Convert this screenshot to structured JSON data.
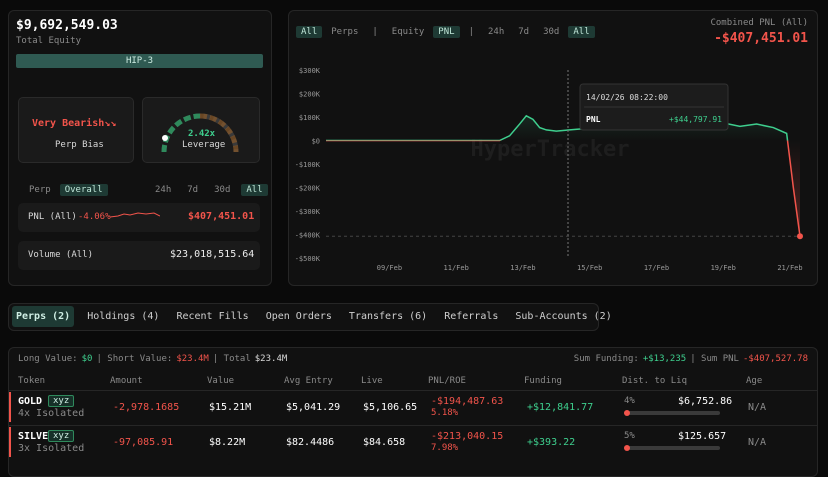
{
  "summary": {
    "equity": "$9,692,549.03",
    "equity_label": "Total Equity",
    "badge": "HIP-3",
    "bias": "Very Bearish↘↘",
    "bias_label": "Perp Bias",
    "leverage": "2.42x",
    "leverage_label": "Leverage",
    "filters": [
      "Perp",
      "Overall"
    ],
    "ranges": [
      "24h",
      "7d",
      "30d",
      "All"
    ],
    "pnl_label": "PNL (All)",
    "pnl_pct": "-4.06%",
    "pnl_value": "$407,451.01",
    "volume_label": "Volume (All)",
    "volume_value": "$23,018,515.64"
  },
  "chart_panel": {
    "tabs": [
      "All",
      "Perps",
      "|",
      "Equity",
      "PNL",
      "|",
      "24h",
      "7d",
      "30d",
      "All"
    ],
    "combined_label": "Combined PNL (All)",
    "combined_value": "-$407,451.01"
  },
  "chart_data": {
    "type": "line",
    "watermark": "HyperTracker",
    "x": [
      7.1,
      12.3,
      12.6,
      12.9,
      13.1,
      13.3,
      13.5,
      13.7,
      14.0,
      14.4,
      14.8,
      15.3,
      15.8,
      16.3,
      16.6,
      17.0,
      17.5,
      18.0,
      18.5,
      19.0,
      19.5,
      20.0,
      20.5,
      20.9,
      21.1,
      21.3
    ],
    "series": [
      {
        "name": "PNL",
        "color": "#3ecf8e",
        "negative_color": "#f2544b",
        "values": [
          0,
          0,
          20000,
          70000,
          105000,
          90000,
          55000,
          45000,
          40000,
          45000,
          50000,
          55000,
          60000,
          75000,
          70000,
          80000,
          60000,
          70000,
          65000,
          75000,
          60000,
          70000,
          55000,
          30000,
          -200000,
          -407451.01
        ]
      }
    ],
    "xlim": [
      7.1,
      21.3
    ],
    "xticks": [
      {
        "value": 9,
        "label": "09/Feb"
      },
      {
        "value": 11,
        "label": "11/Feb"
      },
      {
        "value": 13,
        "label": "13/Feb"
      },
      {
        "value": 15,
        "label": "15/Feb"
      },
      {
        "value": 17,
        "label": "17/Feb"
      },
      {
        "value": 19,
        "label": "19/Feb"
      },
      {
        "value": 21,
        "label": "21/Feb"
      }
    ],
    "ylim": [
      -500000,
      300000
    ],
    "yticks": [
      {
        "value": 300000,
        "label": "$300K"
      },
      {
        "value": 200000,
        "label": "$200K"
      },
      {
        "value": 100000,
        "label": "$100K"
      },
      {
        "value": 0,
        "label": "$0"
      },
      {
        "value": -100000,
        "label": "-$100K"
      },
      {
        "value": -200000,
        "label": "-$200K"
      },
      {
        "value": -300000,
        "label": "-$300K"
      },
      {
        "value": -400000,
        "label": "-$400K"
      },
      {
        "value": -500000,
        "label": "-$500K"
      }
    ],
    "grid": false,
    "cursor_x": 14.35,
    "tooltip": {
      "date": "14/02/26 08:22:00",
      "label": "PNL",
      "value": "+$44,797.91"
    }
  },
  "nav_tabs": [
    "Perps (2)",
    "Holdings (4)",
    "Recent Fills",
    "Open Orders",
    "Transfers (6)",
    "Referrals",
    "Sub-Accounts (2)"
  ],
  "positions": {
    "summary_left": [
      "Long Value:",
      "$0",
      "| Short Value:",
      "$23.4M",
      "| Total",
      "$23.4M"
    ],
    "summary_right": [
      "Sum Funding:",
      "+$13,235",
      "| Sum PNL",
      "-$407,527.78"
    ],
    "headers": [
      "Token",
      "Amount",
      "Value",
      "Avg Entry",
      "Live",
      "PNL/ROE",
      "Funding",
      "Dist. to Liq",
      "Age"
    ],
    "rows": [
      [
        "GOLD",
        "xyz",
        "4x Isolated",
        "-2,978.1685",
        "$15.21M",
        "$5,041.29",
        "$5,106.65",
        "-$194,487.63",
        "5.18%",
        "+$12,841.77",
        "4%",
        "$6,752.86",
        "N/A"
      ],
      [
        "SILVER",
        "xyz",
        "3x Isolated",
        "-97,085.91",
        "$8.22M",
        "$82.4486",
        "$84.658",
        "-$213,040.15",
        "7.98%",
        "+$393.22",
        "5%",
        "$125.657",
        "N/A"
      ]
    ]
  }
}
